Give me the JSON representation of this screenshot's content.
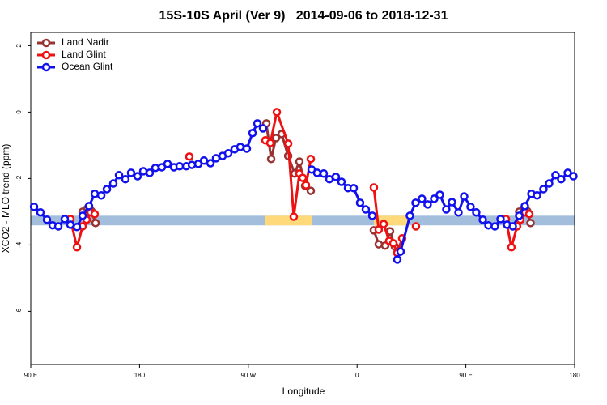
{
  "chart_data": {
    "type": "line",
    "title": "15S-10S April (Ver 9)   2014-09-06 to 2018-12-31",
    "xlabel": "Longitude",
    "ylabel": "XCO2 - MLO trend (ppm)",
    "xlim": [
      90,
      540
    ],
    "ylim": [
      -7.6,
      2.4
    ],
    "xticks": [
      {
        "value": 90,
        "label": "90 E"
      },
      {
        "value": 180,
        "label": "180"
      },
      {
        "value": 270,
        "label": "90 W"
      },
      {
        "value": 360,
        "label": "0"
      },
      {
        "value": 450,
        "label": "90 E"
      },
      {
        "value": 540,
        "label": "180"
      }
    ],
    "yticks": [
      2,
      0,
      -2,
      -4,
      -6
    ],
    "legend": "top-left",
    "band": {
      "ylim": [
        -3.41,
        -3.12
      ],
      "color": "#a3bddd"
    },
    "highlights": {
      "color": "#ffd97a",
      "xlims": [
        [
          284.2,
          322.4
        ],
        [
          373.9,
          403.7
        ]
      ]
    },
    "series": [
      {
        "name": "Land Nadir",
        "color": "#993333",
        "x": [
          132.9,
          136.9,
          140.2,
          143.6,
          null,
          284.9,
          288.9,
          292.9,
          297.6,
          303.0,
          308.3,
          312.3,
          317.0,
          321.7,
          null,
          373.9,
          377.9,
          383.3,
          387.3,
          391.3,
          null,
          494.1,
          498.2,
          500.8,
          503.5
        ],
        "values": [
          -3.0,
          -2.9,
          -2.98,
          -3.34,
          null,
          -0.34,
          -1.41,
          -0.78,
          -0.66,
          -1.32,
          -1.85,
          -1.49,
          -2.22,
          -2.37,
          null,
          -3.56,
          -3.98,
          -4.02,
          -3.59,
          -4.05,
          null,
          -3.0,
          -2.9,
          -2.98,
          -3.34
        ]
      },
      {
        "name": "Land Glint",
        "color": "#ee1111",
        "x": [
          122.8,
          128.2,
          132.9,
          136.2,
          139.6,
          142.9,
          null,
          221.2,
          null,
          284.2,
          288.2,
          293.6,
          303.0,
          307.6,
          312.3,
          315.0,
          317.7,
          321.7,
          null,
          373.9,
          377.9,
          382.0,
          386.6,
          390.0,
          393.3,
          397.3,
          null,
          408.7,
          null,
          483.1,
          487.7,
          492.4,
          495.1,
          499.1,
          502.5
        ],
        "values": [
          -3.22,
          -4.07,
          -3.44,
          -3.24,
          -3.02,
          -3.07,
          null,
          -1.34,
          null,
          -0.85,
          -0.93,
          0.0,
          -0.95,
          -3.15,
          -1.85,
          -1.98,
          -2.2,
          -1.41,
          null,
          -2.27,
          -3.54,
          -3.37,
          -3.88,
          -3.95,
          -4.24,
          -3.8,
          null,
          -3.44,
          null,
          -3.22,
          -4.07,
          -3.44,
          -3.24,
          -3.02,
          -3.07
        ]
      },
      {
        "name": "Ocean Glint",
        "color": "#1111ee",
        "x": [
          92.7,
          98.0,
          103.4,
          108.1,
          112.8,
          118.1,
          122.8,
          128.2,
          132.9,
          138.2,
          142.9,
          148.3,
          153.0,
          158.3,
          163.0,
          168.3,
          173.0,
          178.4,
          183.1,
          188.4,
          193.1,
          198.5,
          203.2,
          208.5,
          213.2,
          218.6,
          223.3,
          228.6,
          233.3,
          238.7,
          243.3,
          248.7,
          253.4,
          258.7,
          263.4,
          268.8,
          273.5,
          277.5,
          282.2,
          null,
          322.4,
          327.0,
          332.4,
          337.1,
          342.4,
          347.1,
          352.5,
          357.2,
          362.5,
          367.2,
          372.6,
          null,
          393.3,
          396.0,
          403.7,
          408.4,
          413.7,
          418.4,
          423.8,
          428.5,
          433.8,
          438.5,
          443.9,
          448.6,
          453.9,
          458.6,
          464.0,
          468.7,
          474.0,
          478.7,
          484.1,
          488.8,
          494.1,
          498.8,
          504.2,
          508.9,
          514.2,
          518.9,
          524.2,
          528.9,
          534.3,
          539.0
        ],
        "values": [
          -2.85,
          -3.02,
          -3.24,
          -3.41,
          -3.44,
          -3.22,
          -3.39,
          -3.46,
          -3.12,
          -2.83,
          -2.46,
          -2.51,
          -2.32,
          -2.15,
          -1.9,
          -2.02,
          -1.83,
          -1.93,
          -1.78,
          -1.83,
          -1.68,
          -1.66,
          -1.56,
          -1.66,
          -1.63,
          -1.63,
          -1.59,
          -1.56,
          -1.46,
          -1.54,
          -1.39,
          -1.32,
          -1.24,
          -1.12,
          -1.05,
          -1.1,
          -0.63,
          -0.34,
          -0.49,
          null,
          -1.73,
          -1.83,
          -1.85,
          -2.02,
          -1.95,
          -2.1,
          -2.29,
          -2.29,
          -2.73,
          -2.93,
          -3.12,
          null,
          -4.44,
          -4.2,
          -3.12,
          -2.73,
          -2.61,
          -2.78,
          -2.61,
          -2.49,
          -2.93,
          -2.71,
          -3.02,
          -2.54,
          -2.85,
          -3.02,
          -3.24,
          -3.41,
          -3.44,
          -3.22,
          -3.39,
          -3.44,
          -3.12,
          -2.83,
          -2.46,
          -2.51,
          -2.32,
          -2.15,
          -1.9,
          -2.02,
          -1.83,
          -1.93
        ]
      }
    ]
  }
}
